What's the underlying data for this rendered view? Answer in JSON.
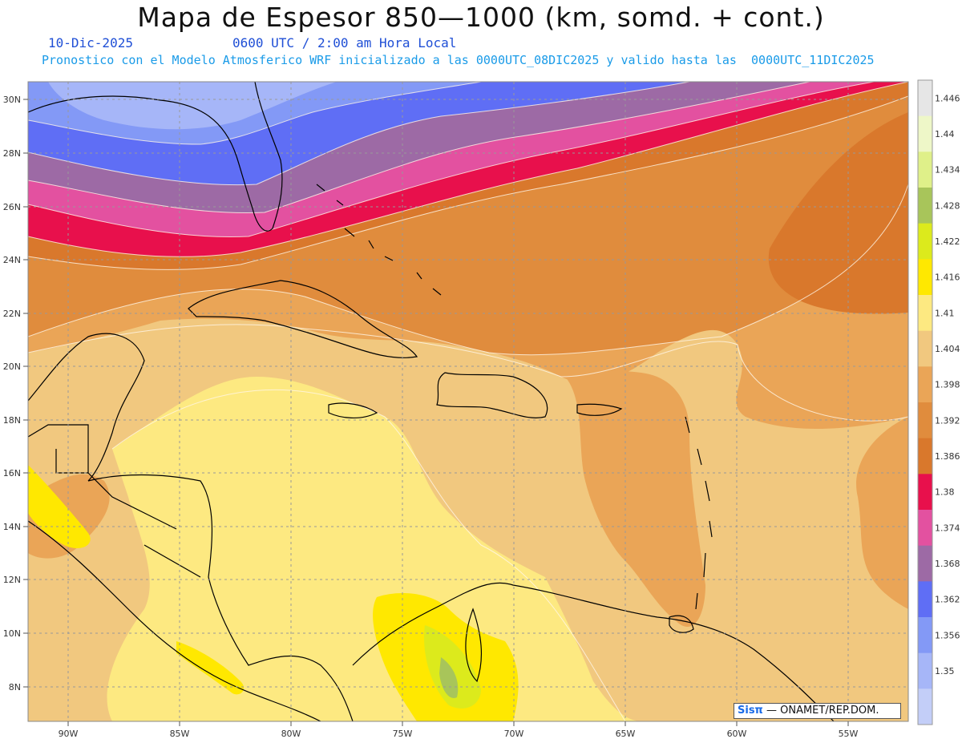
{
  "header": {
    "title": "Mapa de Espesor 850—1000 (km, somd. + cont.)",
    "date": "10-Dic-2025",
    "time": "0600 UTC / 2:00 am Hora Local",
    "description": "Pronostico con el Modelo Atmosferico WRF inicializado a las 0000UTC_08DIC2025 y valido hasta las  0000UTC_11DIC2025"
  },
  "axes": {
    "lat_labels": [
      "30N",
      "28N",
      "26N",
      "24N",
      "22N",
      "20N",
      "18N",
      "16N",
      "14N",
      "12N",
      "10N",
      "8N"
    ],
    "lon_labels": [
      "90W",
      "85W",
      "80W",
      "75W",
      "70W",
      "65W",
      "60W",
      "55W"
    ]
  },
  "legend": {
    "values": [
      "1.446",
      "1.44",
      "1.434",
      "1.428",
      "1.422",
      "1.416",
      "1.41",
      "1.404",
      "1.398",
      "1.392",
      "1.386",
      "1.38",
      "1.374",
      "1.368",
      "1.362",
      "1.356",
      "1.35"
    ],
    "colors": [
      "#e6e6e6",
      "#eef7c8",
      "#dff089",
      "#a8c55a",
      "#dcea1c",
      "#ffe800",
      "#fde981",
      "#f1c87f",
      "#eaa557",
      "#e08c3d",
      "#d9782c",
      "#e8104c",
      "#e351a0",
      "#9d6aa5",
      "#5f6ef5",
      "#8399f6",
      "#a6b6f8",
      "#c3cef8"
    ]
  },
  "credit": {
    "brand": "Sisπ",
    "text": "— ONAMET/REP.DOM."
  },
  "colors": {
    "title": "#111111",
    "date_time": "#1f4fd6",
    "description": "#1a9be8"
  }
}
